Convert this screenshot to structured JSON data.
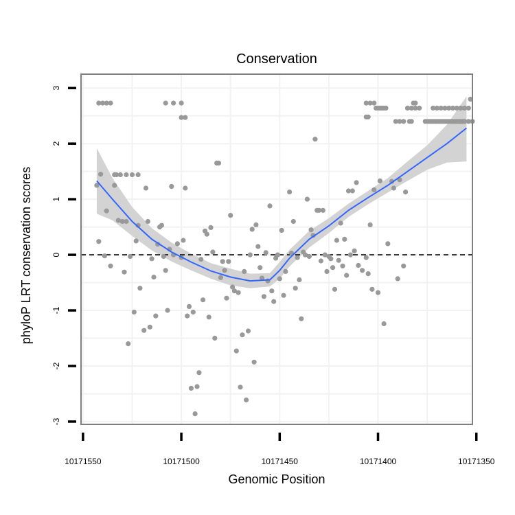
{
  "chart_data": {
    "type": "scatter",
    "title": "Conservation",
    "xlabel": "Genomic Position",
    "ylabel": "phyloP LRT conservation scores",
    "x_reversed": true,
    "xlim": [
      10171551,
      10171352
    ],
    "ylim": [
      -3.05,
      3.25
    ],
    "x_ticks": [
      10171550,
      10171500,
      10171450,
      10171400,
      10171350
    ],
    "x_tick_labels": [
      "10171550",
      "10171500",
      "10171450",
      "10171400",
      "10171350"
    ],
    "y_ticks": [
      -3,
      -2,
      -1,
      0,
      1,
      2,
      3
    ],
    "y_tick_labels": [
      "-3",
      "-2",
      "-1",
      "0",
      "1",
      "2",
      "3"
    ],
    "grid": true,
    "reference_line": {
      "y": 0,
      "style": "dashed"
    },
    "colors": {
      "points": "#999999",
      "smooth_line": "#3366FF",
      "confidence_band": "#D3D3D3",
      "grid": "#F2F2F2",
      "panel_border": "#7F7F7F"
    },
    "series": [
      {
        "kind": "points",
        "points": [
          [
            10171543,
            1.25
          ],
          [
            10171542,
            0.24
          ],
          [
            10171541,
            1.45
          ],
          [
            10171539,
            -0.02
          ],
          [
            10171538,
            0.79
          ],
          [
            10171536,
            -0.2
          ],
          [
            10171534,
            1.25
          ],
          [
            10171533,
            1.44
          ],
          [
            10171532,
            0.62
          ],
          [
            10171530,
            0.6
          ],
          [
            10171529,
            -0.31
          ],
          [
            10171528,
            0.6
          ],
          [
            10171527,
            -1.6
          ],
          [
            10171526,
            -0.03
          ],
          [
            10171524,
            -1.03
          ],
          [
            10171523,
            0.25
          ],
          [
            10171522,
            0.53
          ],
          [
            10171521,
            -0.6
          ],
          [
            10171519,
            -1.36
          ],
          [
            10171518,
            1.2
          ],
          [
            10171517,
            0.6
          ],
          [
            10171516,
            -1.3
          ],
          [
            10171515,
            -0.07
          ],
          [
            10171514,
            -0.4
          ],
          [
            10171513,
            -1.1
          ],
          [
            10171512,
            0.19
          ],
          [
            10171511,
            0.5
          ],
          [
            10171510,
            0.53
          ],
          [
            10171509,
            -0.03
          ],
          [
            10171508,
            -0.28
          ],
          [
            10171507,
            -1.0
          ],
          [
            10171506,
            0.1
          ],
          [
            10171505,
            1.23
          ],
          [
            10171504,
            0.0
          ],
          [
            10171502,
            0.2
          ],
          [
            10171500,
            -0.05
          ],
          [
            10171499,
            0.26
          ],
          [
            10171498,
            1.2
          ],
          [
            10171497,
            -1.1
          ],
          [
            10171496,
            -0.93
          ],
          [
            10171495,
            -2.4
          ],
          [
            10171494,
            -1.03
          ],
          [
            10171493,
            -2.86
          ],
          [
            10171492,
            -2.37
          ],
          [
            10171491,
            -2.12
          ],
          [
            10171490,
            -0.08
          ],
          [
            10171489,
            -0.81
          ],
          [
            10171488,
            0.43
          ],
          [
            10171487,
            0.37
          ],
          [
            10171486,
            -1.12
          ],
          [
            10171485,
            0.49
          ],
          [
            10171484,
            0.05
          ],
          [
            10171483,
            -1.5
          ],
          [
            10171482,
            1.65
          ],
          [
            10171481,
            1.65
          ],
          [
            10171480,
            -0.41
          ],
          [
            10171479,
            -0.12
          ],
          [
            10171478,
            -0.28
          ],
          [
            10171477,
            -0.78
          ],
          [
            10171476,
            -0.12
          ],
          [
            10171475,
            0.71
          ],
          [
            10171474,
            -0.58
          ],
          [
            10171473,
            -0.65
          ],
          [
            10171472,
            -1.73
          ],
          [
            10171471,
            -0.68
          ],
          [
            10171470,
            -2.38
          ],
          [
            10171469,
            -1.44
          ],
          [
            10171468,
            -0.3
          ],
          [
            10171467,
            -2.61
          ],
          [
            10171466,
            -1.37
          ],
          [
            10171465,
            0.0
          ],
          [
            10171464,
            0.46
          ],
          [
            10171463,
            -1.93
          ],
          [
            10171462,
            0.54
          ],
          [
            10171461,
            0.15
          ],
          [
            10171460,
            -0.23
          ],
          [
            10171459,
            -0.42
          ],
          [
            10171458,
            -0.75
          ],
          [
            10171457,
            0.04
          ],
          [
            10171456,
            -0.47
          ],
          [
            10171455,
            0.88
          ],
          [
            10171454,
            -0.65
          ],
          [
            10171453,
            -0.84
          ],
          [
            10171452,
            -0.06
          ],
          [
            10171451,
            0.0
          ],
          [
            10171450,
            -0.43
          ],
          [
            10171449,
            0.44
          ],
          [
            10171448,
            -0.73
          ],
          [
            10171447,
            -0.3
          ],
          [
            10171445,
            1.13
          ],
          [
            10171444,
            0.03
          ],
          [
            10171443,
            0.6
          ],
          [
            10171442,
            -0.6
          ],
          [
            10171441,
            -0.05
          ],
          [
            10171440,
            -0.45
          ],
          [
            10171439,
            -1.15
          ],
          [
            10171438,
            0.05
          ],
          [
            10171437,
            0.0
          ],
          [
            10171436,
            1.0
          ],
          [
            10171435,
            -0.03
          ],
          [
            10171434,
            0.45
          ],
          [
            10171433,
            0.35
          ],
          [
            10171432,
            2.08
          ],
          [
            10171431,
            0.8
          ],
          [
            10171430,
            0.8
          ],
          [
            10171429,
            -0.11
          ],
          [
            10171428,
            0.8
          ],
          [
            10171427,
            0.0
          ],
          [
            10171426,
            -0.3
          ],
          [
            10171425,
            -0.03
          ],
          [
            10171424,
            -0.07
          ],
          [
            10171423,
            -0.23
          ],
          [
            10171422,
            -0.62
          ],
          [
            10171421,
            0.26
          ],
          [
            10171420,
            -0.1
          ],
          [
            10171419,
            0.57
          ],
          [
            10171418,
            -0.2
          ],
          [
            10171417,
            0.28
          ],
          [
            10171416,
            -0.37
          ],
          [
            10171415,
            1.15
          ],
          [
            10171414,
            0.0
          ],
          [
            10171413,
            1.15
          ],
          [
            10171412,
            0.07
          ],
          [
            10171411,
            1.3
          ],
          [
            10171410,
            -0.19
          ],
          [
            10171408,
            -0.28
          ],
          [
            10171406,
            -0.05
          ],
          [
            10171405,
            -0.34
          ],
          [
            10171404,
            0.54
          ],
          [
            10171403,
            -0.62
          ],
          [
            10171402,
            1.17
          ],
          [
            10171400,
            -0.68
          ],
          [
            10171399,
            1.33
          ],
          [
            10171397,
            -1.24
          ],
          [
            10171395,
            0.2
          ],
          [
            10171393,
            1.32
          ],
          [
            10171392,
            1.2
          ],
          [
            10171390,
            -0.43
          ],
          [
            10171389,
            1.35
          ],
          [
            10171387,
            -0.2
          ],
          [
            10171386,
            1.13
          ],
          [
            10171384,
            2.4
          ],
          [
            10171383,
            2.4
          ],
          [
            10171382,
            2.73
          ],
          [
            10171381,
            2.73
          ]
        ],
        "repeated_value_runs": [
          {
            "y": 2.73,
            "x_from": 10171542,
            "x_to": 10171536,
            "step": 2
          },
          {
            "y": 2.73,
            "x_from": 10171508,
            "x_to": 10171497,
            "step": 4
          },
          {
            "y": 2.47,
            "x_from": 10171500,
            "x_to": 10171497,
            "step": 2
          },
          {
            "y": 1.44,
            "x_from": 10171534,
            "x_to": 10171522,
            "step": 3
          },
          {
            "y": 2.73,
            "x_from": 10171406,
            "x_to": 10171402,
            "step": 2
          },
          {
            "y": 2.64,
            "x_from": 10171401,
            "x_to": 10171396,
            "step": 1
          },
          {
            "y": 2.64,
            "x_from": 10171385,
            "x_to": 10171378,
            "step": 2
          },
          {
            "y": 2.64,
            "x_from": 10171372,
            "x_to": 10171354,
            "step": 2
          },
          {
            "y": 2.4,
            "x_from": 10171391,
            "x_to": 10171387,
            "step": 2
          },
          {
            "y": 2.4,
            "x_from": 10171376,
            "x_to": 10171356,
            "step": 1
          },
          {
            "y": 2.4,
            "x_from": 10171358,
            "x_to": 10171352,
            "step": 2
          },
          {
            "y": 2.48,
            "x_from": 10171406,
            "x_to": 10171405,
            "step": 1
          },
          {
            "y": 2.8,
            "x_from": 10171353,
            "x_to": 10171353,
            "step": 1
          }
        ]
      },
      {
        "kind": "smooth",
        "x": [
          10171543,
          10171535,
          10171525,
          10171515,
          10171505,
          10171495,
          10171485,
          10171475,
          10171465,
          10171455,
          10171450,
          10171445,
          10171435,
          10171425,
          10171415,
          10171405,
          10171395,
          10171385,
          10171375,
          10171365,
          10171355
        ],
        "y": [
          1.33,
          1.0,
          0.6,
          0.28,
          0.05,
          -0.13,
          -0.29,
          -0.4,
          -0.47,
          -0.45,
          -0.28,
          -0.06,
          0.28,
          0.52,
          0.8,
          1.03,
          1.25,
          1.5,
          1.75,
          2.0,
          2.28
        ],
        "lower": [
          0.74,
          0.62,
          0.34,
          0.08,
          -0.12,
          -0.28,
          -0.43,
          -0.55,
          -0.6,
          -0.57,
          -0.43,
          -0.21,
          0.13,
          0.39,
          0.68,
          0.91,
          1.12,
          1.33,
          1.53,
          1.66,
          1.68
        ],
        "upper": [
          1.92,
          1.38,
          0.86,
          0.48,
          0.22,
          0.02,
          -0.15,
          -0.25,
          -0.34,
          -0.33,
          -0.13,
          0.09,
          0.43,
          0.66,
          0.92,
          1.15,
          1.38,
          1.68,
          1.97,
          2.34,
          2.85
        ]
      }
    ]
  }
}
